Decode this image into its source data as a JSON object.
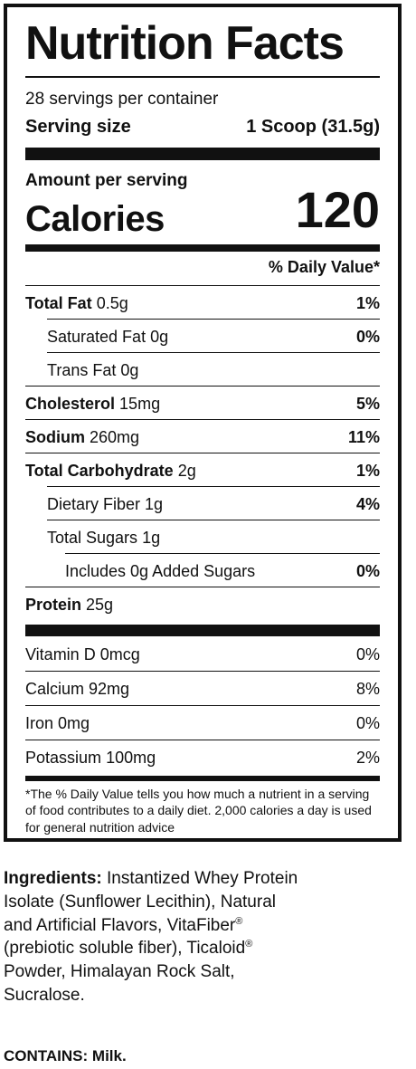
{
  "label": {
    "title": "Nutrition Facts",
    "servings_per_container": "28 servings per container",
    "serving_size_label": "Serving size",
    "serving_size_value": "1 Scoop (31.5g)",
    "amount_per_serving": "Amount per serving",
    "calories_label": "Calories",
    "calories_value": "120",
    "daily_value_header": "% Daily Value*",
    "nutrients": [
      {
        "name": "Total Fat",
        "amount": "0.5g",
        "dv": "1%"
      },
      {
        "name": "Saturated Fat",
        "amount": "0g",
        "dv": "0%"
      },
      {
        "name": "Trans Fat",
        "amount": "0g",
        "dv": ""
      },
      {
        "name": "Cholesterol",
        "amount": "15mg",
        "dv": "5%"
      },
      {
        "name": "Sodium",
        "amount": "260mg",
        "dv": "11%"
      },
      {
        "name": "Total Carbohydrate",
        "amount": "2g",
        "dv": "1%"
      },
      {
        "name": "Dietary Fiber",
        "amount": "1g",
        "dv": "4%"
      },
      {
        "name": "Total Sugars",
        "amount": "1g",
        "dv": ""
      },
      {
        "name": "Includes 0g Added Sugars",
        "amount": "",
        "dv": "0%"
      },
      {
        "name": "Protein",
        "amount": "25g",
        "dv": ""
      }
    ],
    "vitamins": [
      {
        "name": "Vitamin D",
        "amount": "0mcg",
        "dv": "0%"
      },
      {
        "name": "Calcium",
        "amount": "92mg",
        "dv": "8%"
      },
      {
        "name": "Iron",
        "amount": "0mg",
        "dv": "0%"
      },
      {
        "name": "Potassium",
        "amount": "100mg",
        "dv": "2%"
      }
    ],
    "footnote": "*The % Daily Value tells you how much a nutrient in a serving of food contributes to a daily diet. 2,000 calories a day is used for general nutrition advice"
  },
  "ingredients": {
    "label": "Ingredients:",
    "part1": " Instantized Whey Protein Isolate (Sunflower Lecithin), Natural and Artificial Flavors, VitaFiber",
    "reg1": "®",
    "part2": " (prebiotic soluble fiber), Ticaloid",
    "reg2": "®",
    "part3": " Powder, Himalayan Rock Salt, Sucralose."
  },
  "contains": {
    "label": "CONTAINS:",
    "value": " Milk."
  }
}
